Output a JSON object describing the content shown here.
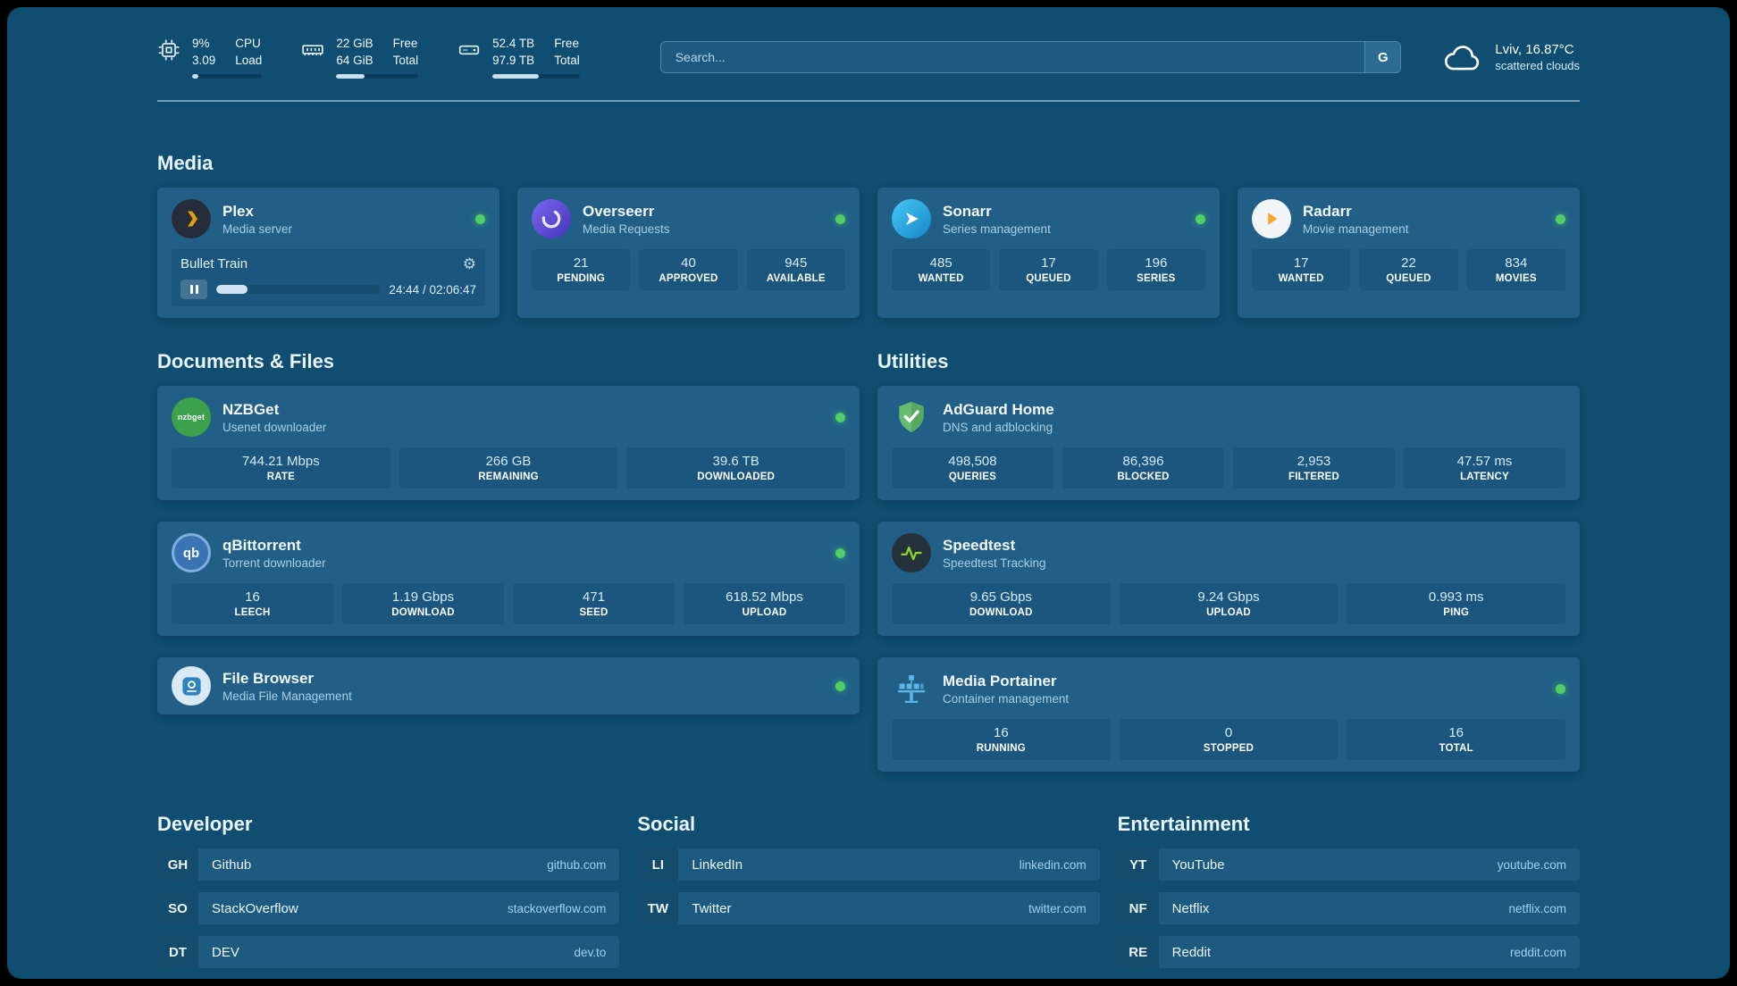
{
  "theme": {
    "background": "#0f4e71",
    "card": "#215f87",
    "stat_box": "#1a567d",
    "status_online": "#51cf66",
    "text_primary": "#f2f8fc",
    "text_secondary": "#a9cfe6",
    "link": "#9fd3f0",
    "plex_accent": "#e5a00d",
    "adguard_green": "#68bc71"
  },
  "topbar": {
    "cpu": {
      "value1": "9%",
      "label1": "CPU",
      "value2": "3.09",
      "label2": "Load",
      "bar": 9
    },
    "ram": {
      "value1": "22 GiB",
      "label1": "Free",
      "value2": "64 GiB",
      "label2": "Total",
      "bar": 34
    },
    "disk": {
      "value1": "52.4 TB",
      "label1": "Free",
      "value2": "97.9 TB",
      "label2": "Total",
      "bar": 53
    },
    "search": {
      "placeholder": "Search...",
      "engine_label": "G"
    },
    "weather": {
      "location": "Lviv, 16.87°C",
      "condition": "scattered clouds"
    }
  },
  "sections": {
    "media": "Media",
    "documents": "Documents & Files",
    "utilities": "Utilities",
    "developer": "Developer",
    "social": "Social",
    "entertainment": "Entertainment"
  },
  "media": {
    "plex": {
      "name": "Plex",
      "subtitle": "Media server",
      "now_playing": "Bullet Train",
      "time": "24:44 / 02:06:47",
      "progress": 19,
      "settings_glyph": "⚙"
    },
    "overseerr": {
      "name": "Overseerr",
      "subtitle": "Media Requests",
      "stats": [
        {
          "value": "21",
          "label": "PENDING"
        },
        {
          "value": "40",
          "label": "APPROVED"
        },
        {
          "value": "945",
          "label": "AVAILABLE"
        }
      ]
    },
    "sonarr": {
      "name": "Sonarr",
      "subtitle": "Series management",
      "stats": [
        {
          "value": "485",
          "label": "WANTED"
        },
        {
          "value": "17",
          "label": "QUEUED"
        },
        {
          "value": "196",
          "label": "SERIES"
        }
      ]
    },
    "radarr": {
      "name": "Radarr",
      "subtitle": "Movie management",
      "stats": [
        {
          "value": "17",
          "label": "WANTED"
        },
        {
          "value": "22",
          "label": "QUEUED"
        },
        {
          "value": "834",
          "label": "MOVIES"
        }
      ]
    }
  },
  "documents": {
    "nzbget": {
      "name": "NZBGet",
      "subtitle": "Usenet downloader",
      "icon_text": "nzbget",
      "stats": [
        {
          "value": "744.21 Mbps",
          "label": "RATE"
        },
        {
          "value": "266 GB",
          "label": "REMAINING"
        },
        {
          "value": "39.6 TB",
          "label": "DOWNLOADED"
        }
      ]
    },
    "qbittorrent": {
      "name": "qBittorrent",
      "subtitle": "Torrent downloader",
      "icon_text": "qb",
      "stats": [
        {
          "value": "16",
          "label": "LEECH"
        },
        {
          "value": "1.19 Gbps",
          "label": "DOWNLOAD"
        },
        {
          "value": "471",
          "label": "SEED"
        },
        {
          "value": "618.52 Mbps",
          "label": "UPLOAD"
        }
      ]
    },
    "filebrowser": {
      "name": "File Browser",
      "subtitle": "Media File Management"
    }
  },
  "utilities": {
    "adguard": {
      "name": "AdGuard Home",
      "subtitle": "DNS and adblocking",
      "stats": [
        {
          "value": "498,508",
          "label": "QUERIES"
        },
        {
          "value": "86,396",
          "label": "BLOCKED"
        },
        {
          "value": "2,953",
          "label": "FILTERED"
        },
        {
          "value": "47.57 ms",
          "label": "LATENCY"
        }
      ]
    },
    "speedtest": {
      "name": "Speedtest",
      "subtitle": "Speedtest Tracking",
      "stats": [
        {
          "value": "9.65 Gbps",
          "label": "DOWNLOAD"
        },
        {
          "value": "9.24 Gbps",
          "label": "UPLOAD"
        },
        {
          "value": "0.993 ms",
          "label": "PING"
        }
      ]
    },
    "portainer": {
      "name": "Media Portainer",
      "subtitle": "Container management",
      "stats": [
        {
          "value": "16",
          "label": "RUNNING"
        },
        {
          "value": "0",
          "label": "STOPPED"
        },
        {
          "value": "16",
          "label": "TOTAL"
        }
      ]
    }
  },
  "bookmarks": {
    "developer": [
      {
        "abbr": "GH",
        "name": "Github",
        "url": "github.com"
      },
      {
        "abbr": "SO",
        "name": "StackOverflow",
        "url": "stackoverflow.com"
      },
      {
        "abbr": "DT",
        "name": "DEV",
        "url": "dev.to"
      }
    ],
    "social": [
      {
        "abbr": "LI",
        "name": "LinkedIn",
        "url": "linkedin.com"
      },
      {
        "abbr": "TW",
        "name": "Twitter",
        "url": "twitter.com"
      }
    ],
    "entertainment": [
      {
        "abbr": "YT",
        "name": "YouTube",
        "url": "youtube.com"
      },
      {
        "abbr": "NF",
        "name": "Netflix",
        "url": "netflix.com"
      },
      {
        "abbr": "RE",
        "name": "Reddit",
        "url": "reddit.com"
      }
    ]
  }
}
